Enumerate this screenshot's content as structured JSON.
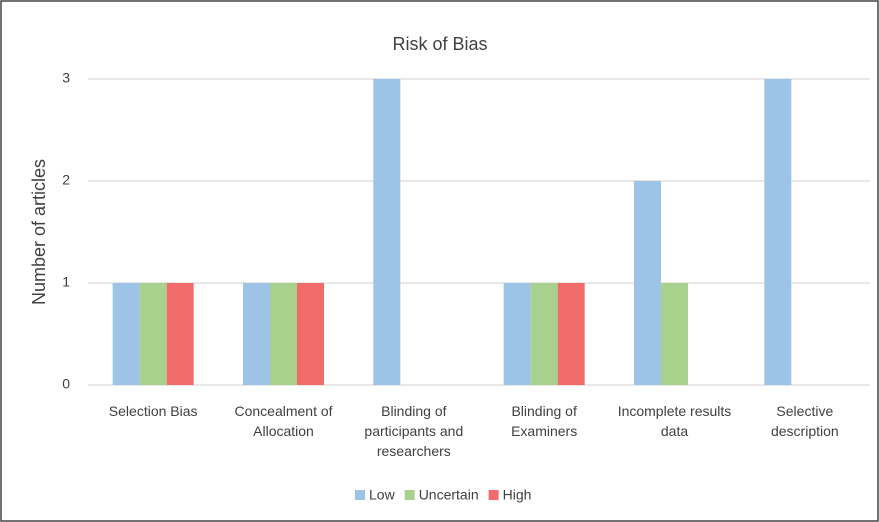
{
  "chart_data": {
    "type": "bar",
    "title": "Risk of Bias",
    "ylabel": "Number of articles",
    "categories": [
      "Selection Bias",
      "Concealment of Allocation",
      "Blinding of participants and researchers",
      "Blinding of Examiners",
      "Incomplete results data",
      "Selective description"
    ],
    "series": [
      {
        "name": "Low",
        "color": "#9dc3e6",
        "values": [
          1,
          1,
          3,
          1,
          2,
          3
        ]
      },
      {
        "name": "Uncertain",
        "color": "#a9d18e",
        "values": [
          1,
          1,
          0,
          1,
          1,
          0
        ]
      },
      {
        "name": "High",
        "color": "#f26b6b",
        "values": [
          1,
          1,
          0,
          1,
          0,
          0
        ]
      }
    ],
    "ylim": [
      0,
      3
    ],
    "yticks": [
      0,
      1,
      2,
      3
    ],
    "grid": true,
    "legend": "bottom"
  }
}
